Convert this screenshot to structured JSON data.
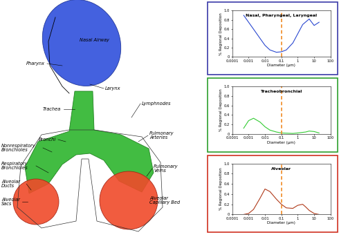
{
  "diagram": {
    "labels": [
      "Nasal Airway",
      "Pharynx",
      "Larynx",
      "Trachea",
      "Lymphnodes",
      "Bronchi",
      "Pulmonary\nArteries",
      "Nonrespiratory\nBronchioles",
      "Respiratory\nBronchioles",
      "Pulmonary\nVeins",
      "Alveolar\nDucts",
      "Alveolar\nSacs",
      "Alveolar\nCapillary Bed"
    ]
  },
  "chart_data": [
    {
      "type": "line",
      "title": "Nasal, Pharyngeal, Laryngeal",
      "x_label": "Diameter (µm)",
      "y_label": "% Regional Deposition",
      "log": "x",
      "xlim": [
        0.0001,
        100
      ],
      "xticks": [
        0.0001,
        0.001,
        0.01,
        0.1,
        1,
        10,
        100
      ],
      "ylim": [
        0,
        1
      ],
      "yticks": [
        0,
        0.2,
        0.4,
        0.6,
        0.8,
        {
          "value": 1,
          "label": "1.0"
        }
      ],
      "x": [
        0.0005,
        0.001,
        0.002,
        0.005,
        0.01,
        0.02,
        0.05,
        0.1,
        0.2,
        0.5,
        1,
        2,
        5,
        10,
        20
      ],
      "values": [
        0.9,
        0.75,
        0.6,
        0.4,
        0.25,
        0.15,
        0.1,
        0.11,
        0.15,
        0.3,
        0.5,
        0.7,
        0.82,
        0.68,
        0.75
      ],
      "color": "#2a48d0",
      "vline_x": 0.1
    },
    {
      "type": "line",
      "title": "Tracheobronchial",
      "x_label": "Diameter (µm)",
      "y_label": "% Regional Deposition",
      "log": "x",
      "xlim": [
        0.0001,
        100
      ],
      "xticks": [
        0.0001,
        0.001,
        0.01,
        0.1,
        1,
        10,
        100
      ],
      "ylim": [
        0,
        1
      ],
      "yticks": [
        0,
        0.2,
        0.4,
        0.6,
        0.8,
        {
          "value": 1,
          "label": "1.0"
        }
      ],
      "x": [
        0.0005,
        0.001,
        0.002,
        0.005,
        0.01,
        0.02,
        0.05,
        0.1,
        0.5,
        1,
        3,
        5,
        10,
        20
      ],
      "values": [
        0.12,
        0.28,
        0.33,
        0.25,
        0.15,
        0.08,
        0.04,
        0.02,
        0.01,
        0.02,
        0.04,
        0.06,
        0.05,
        0.02
      ],
      "color": "#33cc33",
      "vline_x": 0.1
    },
    {
      "type": "line",
      "title": "Alveolar",
      "x_label": "Diameter (µm)",
      "y_label": "% Regional Deposition",
      "log": "x",
      "xlim": [
        0.0001,
        100
      ],
      "xticks": [
        0.0001,
        0.001,
        0.01,
        0.1,
        1,
        10,
        100
      ],
      "ylim": [
        0,
        1
      ],
      "yticks": [
        0,
        0.2,
        0.4,
        0.6,
        0.8,
        {
          "value": 1,
          "label": "1.0"
        }
      ],
      "x": [
        0.0005,
        0.001,
        0.002,
        0.005,
        0.01,
        0.02,
        0.05,
        0.1,
        0.2,
        0.5,
        1,
        2,
        3,
        5,
        10,
        20
      ],
      "values": [
        0.0,
        0.02,
        0.1,
        0.32,
        0.5,
        0.45,
        0.3,
        0.2,
        0.13,
        0.12,
        0.18,
        0.2,
        0.15,
        0.08,
        0.02,
        0.0
      ],
      "color": "#b03a1a",
      "vline_x": 0.1
    }
  ]
}
